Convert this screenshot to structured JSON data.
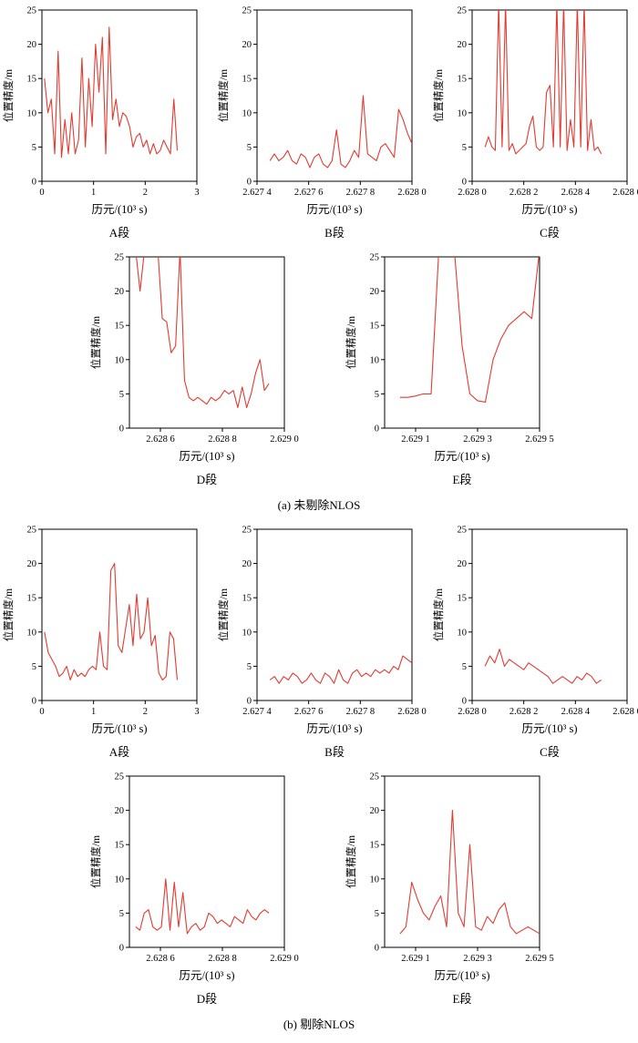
{
  "colors": {
    "line": "#e23b32",
    "axis": "#000000"
  },
  "sections": {
    "a": {
      "caption": "(a) 未剔除NLOS"
    },
    "b": {
      "caption": "(b) 剔除NLOS"
    }
  },
  "chart_data": [
    {
      "id": "aA",
      "group": "a",
      "segment": "A段",
      "type": "line",
      "xlabel": "历元/(10³ s)",
      "ylabel": "位置精度/m",
      "xlim": [
        0,
        3
      ],
      "ylim": [
        0,
        25
      ],
      "xticks": [
        0,
        1,
        2,
        3
      ],
      "xtick_labels": [
        "0",
        "1",
        "2",
        "3"
      ],
      "yticks": [
        0,
        5,
        10,
        15,
        20,
        25
      ],
      "ytick_labels": [
        "0",
        "5",
        "10",
        "15",
        "20",
        "25"
      ],
      "x_start": 0.05,
      "x_end": 2.62,
      "y": [
        15,
        10,
        12,
        4,
        19,
        3.5,
        9,
        4,
        10,
        4,
        6,
        18,
        5,
        15,
        8,
        20,
        13,
        21,
        4,
        22.5,
        9,
        12,
        8,
        10,
        9.5,
        8,
        5,
        6.5,
        7,
        5,
        6,
        4,
        5.5,
        4,
        4.5,
        6,
        5,
        4,
        12,
        4.5
      ]
    },
    {
      "id": "aB",
      "group": "a",
      "segment": "B段",
      "type": "line",
      "xlabel": "历元/(10³ s)",
      "ylabel": "位置精度/m",
      "xlim": [
        2.6274,
        2.628
      ],
      "ylim": [
        0,
        25
      ],
      "xticks": [
        2.6274,
        2.6276,
        2.6278,
        2.628
      ],
      "xtick_labels": [
        "2.627 4",
        "2.627 6",
        "2.627 8",
        "2.628 0"
      ],
      "yticks": [
        0,
        5,
        10,
        15,
        20,
        25
      ],
      "ytick_labels": [
        "0",
        "5",
        "10",
        "15",
        "20",
        "25"
      ],
      "x_start": 2.62745,
      "x_end": 2.628,
      "y": [
        3,
        4,
        3,
        3.5,
        4.5,
        3,
        2.5,
        4,
        3.5,
        2,
        3.5,
        4,
        2.5,
        2,
        3,
        7.5,
        2.5,
        2,
        3,
        4.5,
        3.5,
        12.5,
        4,
        3.5,
        3,
        5,
        5.5,
        4.5,
        3.5,
        10.5,
        9,
        7,
        5.5
      ]
    },
    {
      "id": "aC",
      "group": "a",
      "segment": "C段",
      "type": "line",
      "xlabel": "历元/(10³ s)",
      "ylabel": "位置精度/m",
      "xlim": [
        2.628,
        2.6286
      ],
      "ylim": [
        0,
        25
      ],
      "xticks": [
        2.628,
        2.6282,
        2.6284,
        2.6286
      ],
      "xtick_labels": [
        "2.628 0",
        "2.628 2",
        "2.628 4",
        "2.628 6"
      ],
      "yticks": [
        0,
        5,
        10,
        15,
        20,
        25
      ],
      "ytick_labels": [
        "0",
        "5",
        "10",
        "15",
        "20",
        "25"
      ],
      "x_start": 2.62805,
      "x_end": 2.6285,
      "y": [
        5,
        6.5,
        5,
        4.5,
        26,
        5,
        26,
        4.5,
        5.5,
        4,
        4.5,
        5,
        5.5,
        8,
        9.5,
        5,
        4.5,
        5,
        13,
        14,
        5,
        26,
        5,
        26,
        4.5,
        9,
        5,
        26,
        5,
        26,
        4.5,
        9,
        4.5,
        5,
        4
      ]
    },
    {
      "id": "aD",
      "group": "a",
      "segment": "D段",
      "type": "line",
      "xlabel": "历元/(10³ s)",
      "ylabel": "位置精度/m",
      "xlim": [
        2.6285,
        2.629
      ],
      "ylim": [
        0,
        25
      ],
      "xticks": [
        2.6286,
        2.6288,
        2.629
      ],
      "xtick_labels": [
        "2.628 6",
        "2.628 8",
        "2.629 0"
      ],
      "yticks": [
        0,
        5,
        10,
        15,
        20,
        25
      ],
      "ytick_labels": [
        "0",
        "5",
        "10",
        "15",
        "20",
        "25"
      ],
      "x_start": 2.62852,
      "x_end": 2.62895,
      "y": [
        26,
        20,
        26,
        26,
        26,
        26,
        16,
        15.5,
        11,
        12,
        26,
        7,
        4.5,
        4,
        4.5,
        4,
        3.5,
        4.5,
        4,
        4.5,
        5.5,
        5,
        5.5,
        3,
        6,
        3,
        5,
        8,
        10,
        5.5,
        6.5
      ]
    },
    {
      "id": "aE",
      "group": "a",
      "segment": "E段",
      "type": "line",
      "xlabel": "历元/(10³ s)",
      "ylabel": "位置精度/m",
      "xlim": [
        2.629,
        2.6295
      ],
      "ylim": [
        0,
        25
      ],
      "xticks": [
        2.6291,
        2.6293,
        2.6295
      ],
      "xtick_labels": [
        "2.629 1",
        "2.629 3",
        "2.629 5"
      ],
      "yticks": [
        0,
        5,
        10,
        15,
        20,
        25
      ],
      "ytick_labels": [
        "0",
        "5",
        "10",
        "15",
        "20",
        "25"
      ],
      "x_start": 2.62905,
      "x_end": 2.6295,
      "y": [
        4.5,
        4.5,
        4.7,
        5,
        5,
        26,
        26,
        26,
        12,
        5,
        4,
        3.8,
        10,
        13,
        15,
        16,
        17,
        16,
        26
      ]
    },
    {
      "id": "bA",
      "group": "b",
      "segment": "A段",
      "type": "line",
      "xlabel": "历元/(10³ s)",
      "ylabel": "位置精度/m",
      "xlim": [
        0,
        3
      ],
      "ylim": [
        0,
        25
      ],
      "xticks": [
        0,
        1,
        2,
        3
      ],
      "xtick_labels": [
        "0",
        "1",
        "2",
        "3"
      ],
      "yticks": [
        0,
        5,
        10,
        15,
        20,
        25
      ],
      "ytick_labels": [
        "0",
        "5",
        "10",
        "15",
        "20",
        "25"
      ],
      "x_start": 0.05,
      "x_end": 2.62,
      "y": [
        10,
        7,
        6,
        5,
        3.5,
        4,
        5,
        3,
        4.5,
        3.5,
        4,
        3.5,
        4.5,
        5,
        4.5,
        10,
        5,
        4.5,
        19,
        20,
        8,
        7,
        10.5,
        14,
        8,
        15.5,
        9,
        10,
        15,
        8,
        9.5,
        4,
        3,
        3.5,
        10,
        9,
        3
      ]
    },
    {
      "id": "bB",
      "group": "b",
      "segment": "B段",
      "type": "line",
      "xlabel": "历元/(10³ s)",
      "ylabel": "位置精度/m",
      "xlim": [
        2.6274,
        2.628
      ],
      "ylim": [
        0,
        25
      ],
      "xticks": [
        2.6274,
        2.6276,
        2.6278,
        2.628
      ],
      "xtick_labels": [
        "2.627 4",
        "2.627 6",
        "2.627 8",
        "2.628 0"
      ],
      "yticks": [
        0,
        5,
        10,
        15,
        20,
        25
      ],
      "ytick_labels": [
        "0",
        "5",
        "10",
        "15",
        "20",
        "25"
      ],
      "x_start": 2.62745,
      "x_end": 2.628,
      "y": [
        3,
        3.5,
        2.5,
        3.5,
        3,
        4,
        3.5,
        2.5,
        3,
        4,
        3,
        2.5,
        4,
        3.5,
        2.5,
        4.5,
        3,
        2.5,
        4,
        4.5,
        3.5,
        4,
        3.5,
        4.5,
        4,
        4.5,
        4,
        5,
        4.5,
        6.5,
        6,
        5.5
      ]
    },
    {
      "id": "bC",
      "group": "b",
      "segment": "C段",
      "type": "line",
      "xlabel": "历元/(10³ s)",
      "ylabel": "位置精度/m",
      "xlim": [
        2.628,
        2.6286
      ],
      "ylim": [
        0,
        25
      ],
      "xticks": [
        2.628,
        2.6282,
        2.6284,
        2.6286
      ],
      "xtick_labels": [
        "2.628 0",
        "2.628 2",
        "2.628 4",
        "2.628 6"
      ],
      "yticks": [
        0,
        5,
        10,
        15,
        20,
        25
      ],
      "ytick_labels": [
        "0",
        "5",
        "10",
        "15",
        "20",
        "25"
      ],
      "x_start": 2.62805,
      "x_end": 2.6285,
      "y": [
        5,
        6.5,
        5.5,
        7.5,
        5,
        6,
        5.5,
        5,
        4.5,
        5.5,
        5,
        4.5,
        4,
        3.5,
        2.5,
        3,
        3.5,
        3,
        2.5,
        3.5,
        3,
        4,
        3.5,
        2.5,
        3
      ]
    },
    {
      "id": "bD",
      "group": "b",
      "segment": "D段",
      "type": "line",
      "xlabel": "历元/(10³ s)",
      "ylabel": "位置精度/m",
      "xlim": [
        2.6285,
        2.629
      ],
      "ylim": [
        0,
        25
      ],
      "xticks": [
        2.6286,
        2.6288,
        2.629
      ],
      "xtick_labels": [
        "2.628 6",
        "2.628 8",
        "2.629 0"
      ],
      "yticks": [
        0,
        5,
        10,
        15,
        20,
        25
      ],
      "ytick_labels": [
        "0",
        "5",
        "10",
        "15",
        "20",
        "25"
      ],
      "x_start": 2.62852,
      "x_end": 2.62895,
      "y": [
        3,
        2.5,
        5,
        5.5,
        3,
        2.5,
        3,
        10,
        2.5,
        9.5,
        3,
        8,
        2,
        3,
        3.5,
        2.5,
        3,
        5,
        4.5,
        3.5,
        4,
        3.5,
        3,
        4.5,
        4,
        3.5,
        5.5,
        4.5,
        4,
        5,
        5.5,
        5
      ]
    },
    {
      "id": "bE",
      "group": "b",
      "segment": "E段",
      "type": "line",
      "xlabel": "历元/(10³ s)",
      "ylabel": "位置精度/m",
      "xlim": [
        2.629,
        2.6295
      ],
      "ylim": [
        0,
        25
      ],
      "xticks": [
        2.6291,
        2.6293,
        2.6295
      ],
      "xtick_labels": [
        "2.629 1",
        "2.629 3",
        "2.629 5"
      ],
      "yticks": [
        0,
        5,
        10,
        15,
        20,
        25
      ],
      "ytick_labels": [
        "0",
        "5",
        "10",
        "15",
        "20",
        "25"
      ],
      "x_start": 2.62905,
      "x_end": 2.6295,
      "y": [
        2,
        3,
        9.5,
        7,
        5,
        4,
        6,
        7.5,
        3,
        20,
        5,
        3,
        15,
        3,
        2.5,
        4.5,
        3.5,
        5.5,
        6.5,
        3,
        2,
        2.5,
        3,
        2.5,
        2
      ]
    }
  ]
}
